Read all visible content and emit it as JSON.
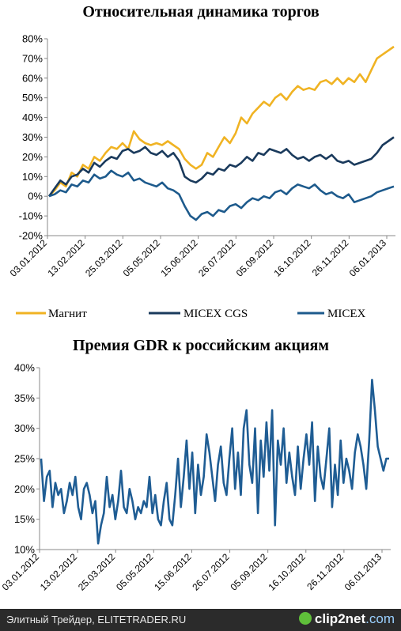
{
  "colors": {
    "magnit": "#f0b323",
    "micex_cgs": "#1a3a5c",
    "micex": "#1d5a8c",
    "gdr": "#1f5d94",
    "footer_bg": "#2b2b2b"
  },
  "chart_data": [
    {
      "type": "line",
      "title": "Относительная динамика торгов",
      "xlabel": "",
      "ylabel": "",
      "x_ticks": [
        "03.01.2012",
        "13.02.2012",
        "25.03.2012",
        "05.05.2012",
        "15.06.2012",
        "26.07.2012",
        "05.09.2012",
        "16.10.2012",
        "26.11.2012",
        "06.01.2013"
      ],
      "y_ticks": [
        "80%",
        "70%",
        "60%",
        "50%",
        "40%",
        "30%",
        "20%",
        "10%",
        "0%",
        "-10%",
        "-20%"
      ],
      "ylim": [
        -20,
        80
      ],
      "grid": false,
      "legend_position": "bottom",
      "series": [
        {
          "name": "Магнит",
          "color": "#f0b323",
          "values": [
            0,
            3,
            7,
            5,
            12,
            10,
            16,
            14,
            20,
            18,
            22,
            25,
            24,
            27,
            24,
            33,
            29,
            27,
            26,
            27,
            26,
            28,
            26,
            24,
            19,
            16,
            14,
            16,
            22,
            20,
            25,
            30,
            27,
            32,
            40,
            37,
            42,
            45,
            48,
            46,
            50,
            52,
            49,
            53,
            56,
            54,
            55,
            54,
            58,
            59,
            57,
            60,
            57,
            60,
            58,
            62,
            58,
            64,
            70,
            72,
            74,
            76
          ]
        },
        {
          "name": "MICEX CGS",
          "color": "#1a3a5c",
          "values": [
            0,
            4,
            8,
            6,
            10,
            11,
            14,
            12,
            17,
            15,
            18,
            20,
            19,
            23,
            24,
            22,
            23,
            25,
            22,
            21,
            23,
            20,
            22,
            18,
            10,
            8,
            7,
            9,
            12,
            11,
            14,
            13,
            16,
            15,
            17,
            20,
            18,
            22,
            21,
            24,
            23,
            22,
            24,
            21,
            19,
            20,
            18,
            20,
            21,
            19,
            21,
            18,
            17,
            18,
            16,
            17,
            18,
            19,
            22,
            26,
            28,
            30
          ]
        },
        {
          "name": "MICEX",
          "color": "#1d5a8c",
          "values": [
            0,
            1,
            3,
            2,
            6,
            5,
            8,
            7,
            11,
            9,
            10,
            13,
            11,
            10,
            12,
            8,
            9,
            7,
            6,
            5,
            7,
            4,
            3,
            1,
            -5,
            -10,
            -12,
            -9,
            -8,
            -10,
            -7,
            -8,
            -5,
            -4,
            -6,
            -3,
            -1,
            -2,
            0,
            -1,
            2,
            3,
            1,
            4,
            6,
            5,
            4,
            6,
            3,
            1,
            2,
            0,
            -1,
            1,
            -3,
            -2,
            -1,
            0,
            2,
            3,
            4,
            5
          ]
        }
      ]
    },
    {
      "type": "line",
      "title": "Премия GDR к российским акциям",
      "xlabel": "",
      "ylabel": "",
      "x_ticks": [
        "03.01.2012",
        "13.02.2012",
        "25.03.2012",
        "05.05.2012",
        "15.06.2012",
        "26.07.2012",
        "05.09.2012",
        "16.10.2012",
        "26.11.2012",
        "06.01.2013"
      ],
      "y_ticks": [
        "40%",
        "35%",
        "30%",
        "25%",
        "20%",
        "15%",
        "10%"
      ],
      "ylim": [
        10,
        40
      ],
      "grid": false,
      "legend_position": "none",
      "series": [
        {
          "color": "#1f5d94",
          "values": [
            25,
            18,
            22,
            23,
            17,
            21,
            19,
            20,
            16,
            18,
            21,
            19,
            22,
            17,
            15,
            20,
            21,
            19,
            16,
            18,
            11,
            14,
            16,
            22,
            17,
            19,
            15,
            18,
            23,
            17,
            16,
            20,
            18,
            15,
            17,
            16,
            18,
            17,
            22,
            16,
            19,
            15,
            14,
            18,
            21,
            15,
            14,
            19,
            25,
            17,
            22,
            28,
            20,
            26,
            16,
            24,
            19,
            22,
            29,
            26,
            22,
            18,
            24,
            27,
            21,
            19,
            25,
            30,
            20,
            26,
            19,
            30,
            33,
            24,
            21,
            30,
            16,
            28,
            22,
            31,
            23,
            33,
            14,
            28,
            24,
            30,
            21,
            26,
            22,
            19,
            27,
            20,
            25,
            29,
            24,
            31,
            18,
            27,
            22,
            20,
            25,
            30,
            17,
            24,
            19,
            28,
            21,
            25,
            23,
            20,
            26,
            29,
            27,
            24,
            20,
            28,
            38,
            33,
            27,
            25,
            23,
            25,
            25
          ]
        }
      ]
    }
  ],
  "legend": [
    {
      "label": "Магнит",
      "color": "#f0b323"
    },
    {
      "label": "MICEX CGS",
      "color": "#1a3a5c"
    },
    {
      "label": "MICEX",
      "color": "#1d5a8c"
    }
  ],
  "footer": {
    "text": "Элитный Трейдер, ELITETRADER.RU",
    "brand_main": "clip2net",
    "brand_domain": ".com"
  }
}
